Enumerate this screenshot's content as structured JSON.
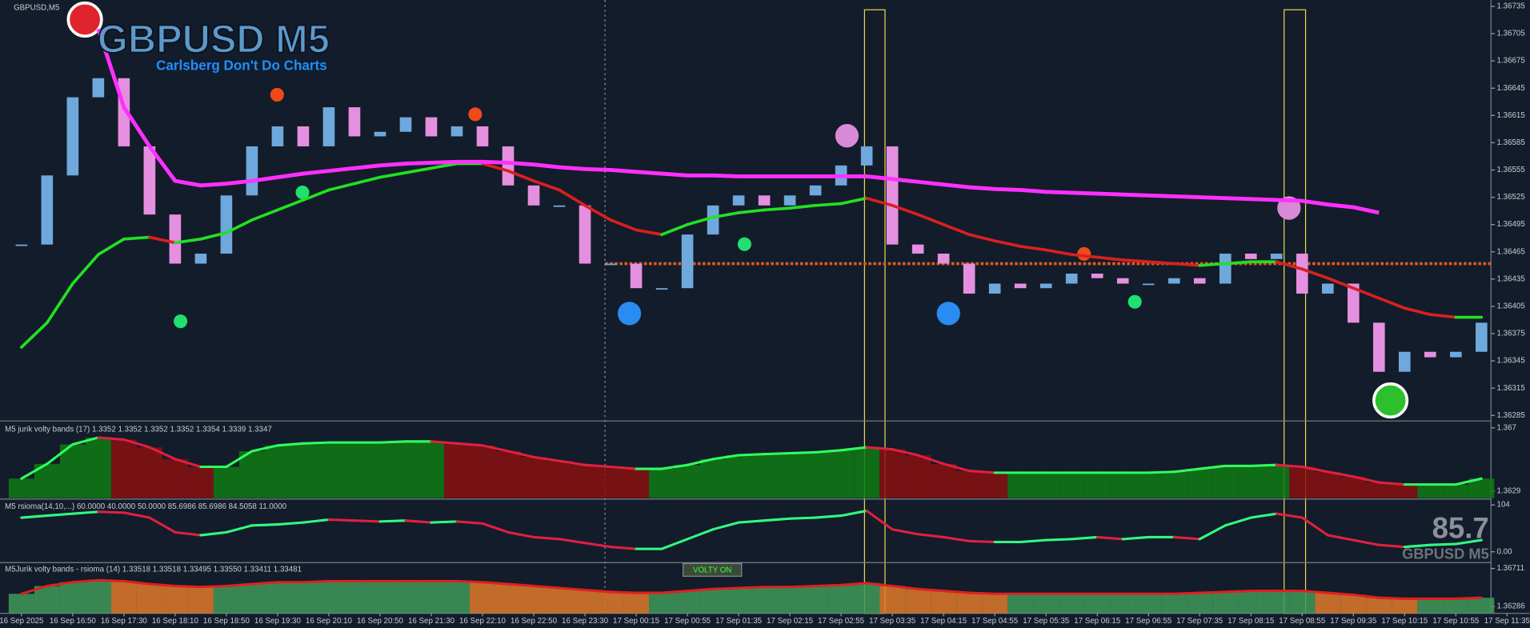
{
  "chart_data": [
    {
      "type": "candlestick",
      "title": "GBPUSD,M5",
      "watermark": "GBPUSD M5",
      "subtitle": "Carlsberg Don't Do Charts",
      "x": [
        "16 Sep 2025",
        null,
        "16 Sep 16:50",
        null,
        "16 Sep 17:30",
        null,
        "16 Sep 18:10",
        null,
        "16 Sep 18:50",
        null,
        "16 Sep 19:30",
        null,
        "16 Sep 20:10",
        null,
        "16 Sep 20:50",
        null,
        "16 Sep 21:30",
        null,
        "16 Sep 22:10",
        null,
        "16 Sep 22:50",
        null,
        "16 Sep 23:30",
        null,
        "17 Sep 00:15",
        null,
        "17 Sep 00:55",
        null,
        "17 Sep 01:35",
        null,
        "17 Sep 02:15",
        null,
        "17 Sep 02:55",
        null,
        "17 Sep 03:35",
        null,
        "17 Sep 04:15",
        null,
        "17 Sep 04:55",
        null,
        "17 Sep 05:35",
        null,
        "17 Sep 06:15",
        null,
        "17 Sep 06:55",
        null,
        "17 Sep 07:35",
        null,
        "17 Sep 08:15",
        null,
        "17 Sep 08:55",
        null,
        "17 Sep 09:35",
        null,
        "17 Sep 10:15",
        null,
        "17 Sep 10:55",
        null,
        "17 Sep 11:35"
      ],
      "close": [
        1.36473,
        1.36549,
        1.36635,
        1.36656,
        1.36581,
        1.36506,
        1.36452,
        1.36463,
        1.36527,
        1.36581,
        1.36603,
        1.36581,
        1.36624,
        1.36592,
        1.36597,
        1.36613,
        1.36592,
        1.36603,
        1.36581,
        1.36538,
        1.36516,
        1.36516,
        1.36452,
        1.36452,
        1.36425,
        1.36425,
        1.36484,
        1.36516,
        1.36527,
        1.36516,
        1.36527,
        1.36538,
        1.3656,
        1.36581,
        1.36473,
        1.36463,
        1.36452,
        1.36419,
        1.3643,
        1.36425,
        1.3643,
        1.36441,
        1.36436,
        1.3643,
        1.3643,
        1.36436,
        1.3643,
        1.36463,
        1.36457,
        1.36463,
        1.36419,
        1.3643,
        1.36387,
        1.36333,
        1.36355,
        1.36349,
        1.36355,
        1.36387,
        null
      ],
      "up_color": "#6fa8dc",
      "down_color": "#e58fe0",
      "slow_ma": [
        1.3636,
        1.36387,
        1.3643,
        1.36462,
        1.36479,
        1.36481,
        1.36475,
        1.36479,
        1.36486,
        1.365,
        1.36511,
        1.36522,
        1.36533,
        1.3654,
        1.36547,
        1.36552,
        1.36557,
        1.36562,
        1.36562,
        1.36554,
        1.36543,
        1.36533,
        1.36516,
        1.365,
        1.36489,
        1.36484,
        1.36495,
        1.36503,
        1.36508,
        1.36511,
        1.36513,
        1.36516,
        1.36518,
        1.36524,
        1.36516,
        1.36506,
        1.36495,
        1.36484,
        1.36477,
        1.36471,
        1.36467,
        1.36462,
        1.36459,
        1.36456,
        1.36454,
        1.36452,
        1.3645,
        1.36452,
        1.36454,
        1.36454,
        1.36446,
        1.36436,
        1.36425,
        1.36414,
        1.36403,
        1.36396,
        1.36393,
        1.36393,
        null
      ],
      "slow_up_color": "#22e022",
      "slow_down_color": "#d82020",
      "long_ma": [
        null,
        null,
        null,
        1.3671,
        1.36624,
        1.36581,
        1.36543,
        1.36538,
        1.3654,
        1.36543,
        1.36547,
        1.36551,
        1.36554,
        1.36557,
        1.3656,
        1.36562,
        1.36563,
        1.36564,
        1.36564,
        1.36563,
        1.36561,
        1.36558,
        1.36556,
        1.36555,
        1.36553,
        1.36551,
        1.36549,
        1.36549,
        1.36548,
        1.36548,
        1.36548,
        1.36548,
        1.36548,
        1.36548,
        1.36545,
        1.36542,
        1.36539,
        1.36536,
        1.36534,
        1.36533,
        1.36531,
        1.3653,
        1.36529,
        1.36528,
        1.36527,
        1.36526,
        1.36525,
        1.36524,
        1.36523,
        1.36522,
        1.36521,
        1.36517,
        1.36514,
        1.36508,
        null,
        null,
        null,
        null,
        null
      ],
      "long_color": "#ff30ff",
      "level": 1.36452,
      "level_color": "#e05a20",
      "ylim": [
        1.3628,
        1.36742
      ],
      "yticks": [
        1.36735,
        1.36705,
        1.36675,
        1.36645,
        1.36615,
        1.36585,
        1.36555,
        1.36525,
        1.36495,
        1.36465,
        1.36435,
        1.36405,
        1.36375,
        1.36345,
        1.36315,
        1.36285
      ]
    },
    {
      "type": "histogram-line",
      "title": "M5 jurik volty bands  (17) 1.3352 1.3352 1.3352 1.3352 1.3354 1.3339 1.3347",
      "values": [
        1.36372,
        1.36467,
        1.36593,
        1.36637,
        1.36624,
        1.36574,
        1.36498,
        1.36448,
        1.36448,
        1.36549,
        1.36586,
        1.36599,
        1.36605,
        1.36605,
        1.36605,
        1.36612,
        1.36612,
        1.36599,
        1.36586,
        1.36549,
        1.36511,
        1.36486,
        1.3646,
        1.36448,
        1.36435,
        1.36435,
        1.3646,
        1.36498,
        1.36523,
        1.3653,
        1.36536,
        1.36542,
        1.36555,
        1.36574,
        1.36561,
        1.36523,
        1.36467,
        1.36422,
        1.3641,
        1.3641,
        1.3641,
        1.3641,
        1.3641,
        1.3641,
        1.3641,
        1.36416,
        1.36435,
        1.36454,
        1.36454,
        1.3646,
        1.36448,
        1.36416,
        1.36385,
        1.36347,
        1.36334,
        1.36334,
        1.36334,
        1.36372,
        null
      ],
      "up_color": "#0f7a14",
      "down_color": "#8a1010",
      "line_up_color": "#30ff60",
      "line_down_color": "#e02040",
      "ylim": [
        1.36246,
        1.36738
      ],
      "yticks": [
        1.367,
        1.3629
      ]
    },
    {
      "type": "line",
      "title": "M5  rsioma(14,10,...) 60.0000 40.0000 50.0000 85.6986 85.6986 84.5058 11.0000",
      "values": [
        75.8,
        80.2,
        84.5,
        88.8,
        86.7,
        75.8,
        43.3,
        36.8,
        43.3,
        58.5,
        60.7,
        65.0,
        71.5,
        69.3,
        67.2,
        69.3,
        65.0,
        67.2,
        62.8,
        43.3,
        32.5,
        28.2,
        19.5,
        10.8,
        6.5,
        6.5,
        28.2,
        49.8,
        65.0,
        69.3,
        73.7,
        75.8,
        80.2,
        91.0,
        49.8,
        39.0,
        32.5,
        23.8,
        21.7,
        21.7,
        26.0,
        28.2,
        32.5,
        28.2,
        32.5,
        32.5,
        28.2,
        58.5,
        75.8,
        84.5,
        75.8,
        36.8,
        26.0,
        15.2,
        10.8,
        15.2,
        17.3,
        26.0,
        null
      ],
      "line_up_color": "#30ff80",
      "line_down_color": "#e02040",
      "annotations": [
        "85.7",
        "GBPUSD M5"
      ],
      "ylim": [
        -21.7,
        114.8
      ],
      "yticks": [
        104,
        {
          "value": 0,
          "label": "0.00"
        }
      ]
    },
    {
      "type": "histogram-line",
      "title": "M5Jurik volty bands - rsioma (14) 1.33518 1.33518 1.33495 1.33550 1.33411 1.33481",
      "values": [
        1.36428,
        1.36515,
        1.36558,
        1.3658,
        1.36569,
        1.36537,
        1.36515,
        1.36504,
        1.36515,
        1.36537,
        1.36558,
        1.36558,
        1.36569,
        1.36569,
        1.36569,
        1.36569,
        1.36569,
        1.36569,
        1.36558,
        1.36537,
        1.36515,
        1.36493,
        1.36471,
        1.36449,
        1.36439,
        1.36439,
        1.3646,
        1.36482,
        1.36493,
        1.36504,
        1.36504,
        1.36515,
        1.36526,
        1.36548,
        1.36515,
        1.36482,
        1.3646,
        1.36439,
        1.36428,
        1.36428,
        1.36428,
        1.36428,
        1.36428,
        1.36428,
        1.36428,
        1.36428,
        1.36439,
        1.36449,
        1.3646,
        1.3646,
        1.3646,
        1.36439,
        1.36417,
        1.36384,
        1.36373,
        1.36373,
        1.36373,
        1.36384,
        null
      ],
      "up_color": "#3f9a5a",
      "down_color": "#e07a2a",
      "line_up_color": "#e02020",
      "line_down_color": "#e02020",
      "annotations": [
        "VOLTY ON"
      ],
      "ylim": [
        1.3621,
        1.36766
      ],
      "yticks": [
        1.36711,
        1.36286
      ]
    }
  ]
}
